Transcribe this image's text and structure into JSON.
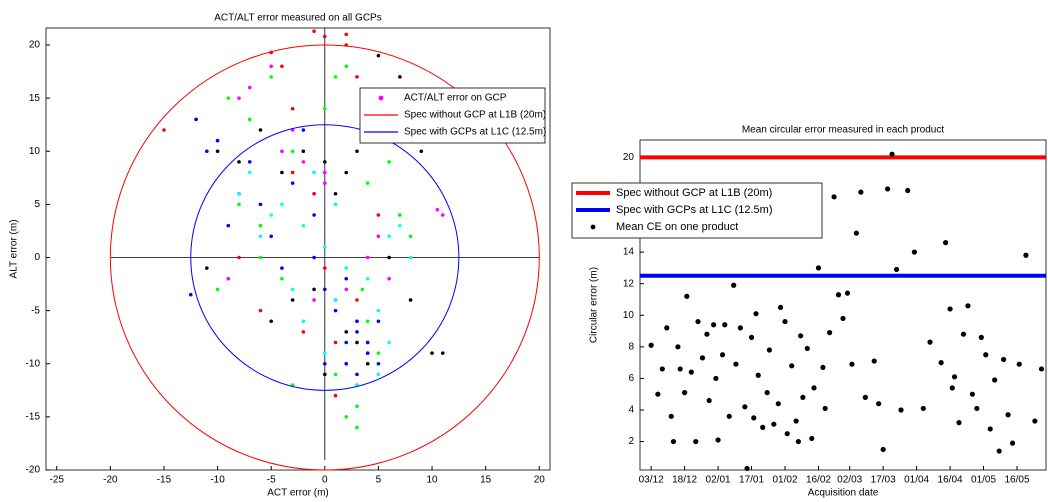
{
  "chart_data": [
    {
      "type": "scatter",
      "title": "ACT/ALT error  measured on all GCPs",
      "x_label": "ACT error (m)",
      "y_label": "ALT error (m)",
      "xlim": [
        -26,
        21
      ],
      "ylim": [
        -20,
        21.6
      ],
      "xticks": [
        -25,
        -20,
        -15,
        -10,
        -5,
        0,
        5,
        10,
        15,
        20
      ],
      "yticks": [
        -20,
        -15,
        -10,
        -5,
        0,
        5,
        10,
        15,
        20
      ],
      "legend": "upper right",
      "series": [
        {
          "name": "ACT/ALT error on GCP",
          "color": "#ff00ff",
          "x": [
            -12,
            -10,
            -8,
            -7,
            -5,
            -4,
            -3,
            -2,
            -1,
            0,
            1,
            2,
            3,
            4,
            5,
            6,
            7,
            10.5,
            11,
            -6,
            -9,
            2,
            3,
            -1,
            0,
            4
          ],
          "values": [
            13,
            11,
            15,
            16,
            18,
            10,
            12,
            9,
            6,
            7,
            5,
            -3,
            -6,
            -8,
            2,
            -2,
            4,
            4.5,
            4,
            3,
            -2,
            -10,
            -12,
            -4,
            8,
            0
          ]
        },
        {
          "color": "#ff0000",
          "x": [
            -15,
            -5,
            -4,
            -3,
            -1,
            0,
            1,
            3,
            2,
            5,
            -8,
            -6,
            -2,
            0,
            3,
            -3,
            -1,
            1,
            4,
            2
          ],
          "values": [
            12,
            19.3,
            18,
            14,
            21.3,
            20.8,
            -13,
            17,
            20,
            4,
            0,
            -5,
            -7,
            -1,
            -4,
            8,
            6,
            -8,
            -9,
            21
          ]
        },
        {
          "color": "#00ff00",
          "x": [
            -9,
            -8,
            -7,
            -6,
            -5,
            -4,
            -3,
            -2,
            -1,
            0,
            1,
            2,
            3,
            4,
            5,
            6,
            7,
            8,
            2,
            3,
            -3,
            -6,
            1,
            4,
            3.5,
            -10
          ],
          "values": [
            15,
            5,
            13,
            3,
            17,
            -2,
            10,
            -6,
            8,
            14,
            -11,
            18,
            -14,
            -6,
            -9,
            9,
            4,
            2,
            -15,
            -16,
            -12,
            0,
            17,
            7,
            -3,
            -3
          ]
        },
        {
          "color": "#0000ff",
          "x": [
            -12,
            -11,
            -10,
            -9,
            -8,
            -7,
            -5,
            -4,
            -3,
            -2,
            -1,
            0,
            1,
            2,
            3,
            4,
            5,
            2,
            3,
            4,
            1,
            0,
            -6,
            -12.5,
            3,
            2,
            5,
            -1
          ],
          "values": [
            13,
            10,
            11,
            3,
            6,
            9,
            2,
            -1,
            7,
            12,
            4,
            -3,
            -5,
            -8,
            -7,
            -9,
            -6,
            -10,
            -11,
            -8,
            -4,
            -10,
            5,
            -3.5,
            -6,
            -2,
            -10,
            0
          ]
        },
        {
          "color": "#00ffff",
          "x": [
            -8,
            -6,
            -5,
            -3,
            -2,
            -1,
            0,
            1,
            2,
            3,
            4,
            5,
            6,
            7,
            -4,
            -2,
            0,
            2,
            4,
            6,
            3,
            1,
            -7,
            5,
            8
          ],
          "values": [
            6,
            2,
            4,
            -3,
            3,
            8,
            1,
            -4,
            -7,
            -8,
            -2,
            -5,
            2,
            3,
            5,
            -6,
            -9,
            -1,
            -10,
            -8,
            -12,
            5,
            8,
            -11,
            0
          ]
        },
        {
          "color": "#000000",
          "x": [
            -10,
            -8,
            -6,
            -4,
            -2,
            0,
            2,
            3,
            5,
            7,
            9,
            10,
            5,
            2,
            -1,
            -5,
            4,
            6,
            1,
            3,
            -3,
            0,
            8,
            11,
            -11
          ],
          "values": [
            10,
            9,
            12,
            8,
            10,
            9,
            8,
            10,
            19,
            17,
            10,
            -9,
            11,
            -7,
            -3,
            -6,
            -10,
            0,
            6,
            -8,
            -4,
            -11,
            -4,
            -9,
            -1
          ]
        },
        {
          "name": "Spec without GCP at L1B (20m)",
          "color": "#ff0000",
          "radius": 20
        },
        {
          "name": "Spec with GCPs at L1C (12.5m)",
          "color": "#0000ff",
          "radius": 12.5
        }
      ]
    },
    {
      "type": "scatter",
      "title": "Mean circular error measured in each product",
      "x_label": "Acquisition date",
      "y_label": "Circular error (m)",
      "xlim": [
        -5,
        177
      ],
      "ylim": [
        0.2,
        21.1
      ],
      "xticks": [
        {
          "value": 0,
          "label": "03/12"
        },
        {
          "value": 15,
          "label": "18/12"
        },
        {
          "value": 30,
          "label": "02/01"
        },
        {
          "value": 45,
          "label": "17/01"
        },
        {
          "value": 60,
          "label": "01/02"
        },
        {
          "value": 75,
          "label": "16/02"
        },
        {
          "value": 89,
          "label": "02/03"
        },
        {
          "value": 104,
          "label": "17/03"
        },
        {
          "value": 119,
          "label": "01/04"
        },
        {
          "value": 134,
          "label": "16/04"
        },
        {
          "value": 149,
          "label": "01/05"
        },
        {
          "value": 164,
          "label": "16/05"
        }
      ],
      "yticks": [
        2,
        4,
        6,
        8,
        10,
        12,
        14,
        16,
        18,
        20
      ],
      "legend": "upper left",
      "series": [
        {
          "name": "Spec without GCP at L1B (20m)",
          "color": "#ff0000",
          "hline": 20
        },
        {
          "name": "Spec with GCPs at L1C (12.5m)",
          "color": "#0000ff",
          "hline": 12.5
        },
        {
          "name": "Mean CE on one product",
          "color": "#000000",
          "x": [
            0,
            3,
            5,
            7,
            9,
            10,
            12,
            13,
            15,
            16,
            18,
            20,
            21,
            23,
            25,
            26,
            28,
            29,
            30,
            32,
            33,
            35,
            37,
            38,
            40,
            42,
            43,
            45,
            46,
            47,
            48,
            50,
            52,
            53,
            55,
            57,
            58,
            60,
            61,
            63,
            65,
            66,
            67,
            68,
            70,
            72,
            73,
            75,
            77,
            78,
            80,
            82,
            84,
            86,
            88,
            90,
            92,
            94,
            96,
            100,
            102,
            104,
            106,
            108,
            110,
            112,
            115,
            118,
            122,
            125,
            130,
            132,
            134,
            135,
            136,
            138,
            140,
            142,
            144,
            146,
            148,
            150,
            152,
            154,
            156,
            158,
            160,
            162,
            165,
            168,
            172,
            175
          ],
          "values": [
            8.1,
            5.0,
            6.6,
            9.2,
            3.6,
            2.0,
            8.0,
            6.6,
            5.1,
            11.2,
            6.4,
            2.0,
            9.6,
            7.3,
            8.8,
            4.6,
            9.4,
            6.0,
            2.1,
            7.5,
            9.4,
            3.6,
            11.9,
            6.9,
            9.2,
            4.2,
            0.3,
            8.6,
            3.5,
            10.1,
            6.2,
            2.9,
            5.1,
            7.8,
            3.1,
            4.4,
            10.5,
            9.6,
            2.5,
            6.8,
            3.3,
            2.0,
            8.7,
            4.8,
            7.9,
            2.2,
            5.4,
            13.0,
            6.7,
            4.1,
            8.9,
            17.5,
            11.3,
            9.8,
            11.4,
            6.9,
            15.2,
            17.8,
            4.8,
            7.1,
            4.4,
            1.5,
            18.0,
            20.2,
            12.9,
            4.0,
            17.9,
            14.0,
            4.1,
            8.3,
            7.0,
            14.6,
            10.4,
            5.4,
            6.1,
            3.2,
            8.8,
            10.6,
            5.0,
            4.1,
            8.6,
            7.5,
            2.8,
            5.9,
            1.4,
            7.2,
            3.7,
            1.9,
            6.9,
            13.8,
            3.3,
            6.6
          ]
        }
      ]
    }
  ]
}
